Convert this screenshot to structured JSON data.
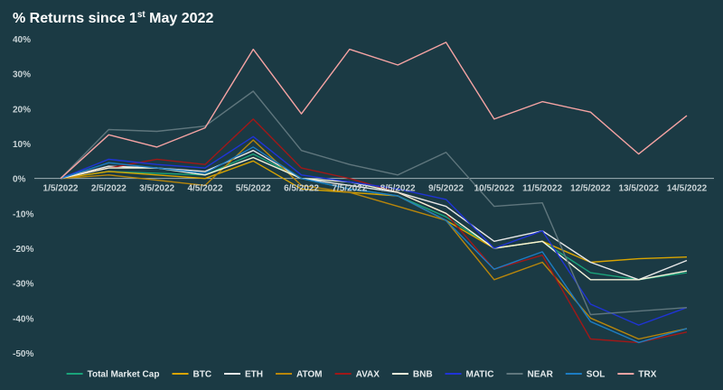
{
  "chart_data": {
    "type": "line",
    "title": {
      "prefix": "% Returns since 1",
      "superscript": "st",
      "suffix": " May 2022"
    },
    "xlabel": "",
    "ylabel": "",
    "ylim": [
      -50,
      40
    ],
    "y_ticks": [
      40,
      30,
      20,
      10,
      0,
      -10,
      -20,
      -30,
      -40,
      -50
    ],
    "y_tick_labels": [
      "40%",
      "30%",
      "20%",
      "10%",
      "0%",
      "-10%",
      "-20%",
      "-30%",
      "-40%",
      "-50%"
    ],
    "categories": [
      "1/5/2022",
      "2/5/2022",
      "3/5/2022",
      "4/5/2022",
      "5/5/2022",
      "6/5/2022",
      "7/5/2022",
      "8/5/2022",
      "9/5/2022",
      "10/5/2022",
      "11/5/2022",
      "12/5/2022",
      "13/5/2022",
      "14/5/2022"
    ],
    "legend_position": "bottom",
    "series": [
      {
        "name": "Total Market Cap",
        "color": "#1aa37a",
        "values": [
          0,
          2,
          1.5,
          1,
          7,
          0,
          -3,
          -5,
          -11,
          -20,
          -18,
          -27,
          -29,
          -27
        ]
      },
      {
        "name": "BTC",
        "color": "#d9a400",
        "values": [
          0,
          2,
          1,
          0,
          5,
          -3,
          -4,
          -5,
          -12,
          -20,
          -18,
          -24,
          -23,
          -22.5
        ]
      },
      {
        "name": "ETH",
        "color": "#e8e8e8",
        "values": [
          0,
          3.5,
          3,
          2,
          8,
          0,
          -2,
          -4,
          -8,
          -18,
          -15,
          -24,
          -29,
          -23.5
        ]
      },
      {
        "name": "ATOM",
        "color": "#b8860b",
        "values": [
          0,
          1,
          -0.5,
          -2,
          11,
          -2,
          -4,
          -8,
          -12,
          -29,
          -24,
          -40,
          -46,
          -43
        ]
      },
      {
        "name": "AVAX",
        "color": "#a01818",
        "values": [
          0,
          3,
          5.5,
          4,
          17,
          3,
          0,
          -4,
          -10,
          -26,
          -22,
          -46,
          -47,
          -44
        ]
      },
      {
        "name": "BNB",
        "color": "#f3f3da",
        "values": [
          0,
          3,
          3,
          1,
          6,
          0,
          -1,
          -4,
          -10,
          -20,
          -18,
          -29,
          -29,
          -26.5
        ]
      },
      {
        "name": "MATIC",
        "color": "#1f34d6",
        "values": [
          0,
          5.5,
          4,
          3,
          12,
          1,
          -1,
          -3,
          -6,
          -20,
          -15,
          -36,
          -42,
          -37
        ]
      },
      {
        "name": "NEAR",
        "color": "#5f767d",
        "values": [
          0,
          14,
          13.5,
          15,
          25,
          8,
          4,
          1,
          7.5,
          -8,
          -7,
          -39,
          -38,
          -37
        ]
      },
      {
        "name": "SOL",
        "color": "#1c7cc2",
        "values": [
          0,
          4.5,
          3,
          1.5,
          9,
          0,
          -3,
          -5,
          -12,
          -26,
          -21,
          -41,
          -47,
          -43
        ]
      },
      {
        "name": "TRX",
        "color": "#f5a3a3",
        "values": [
          0,
          12.5,
          9,
          14.5,
          37,
          18.5,
          37,
          32.5,
          39,
          17,
          22,
          19,
          7,
          18
        ]
      }
    ]
  }
}
